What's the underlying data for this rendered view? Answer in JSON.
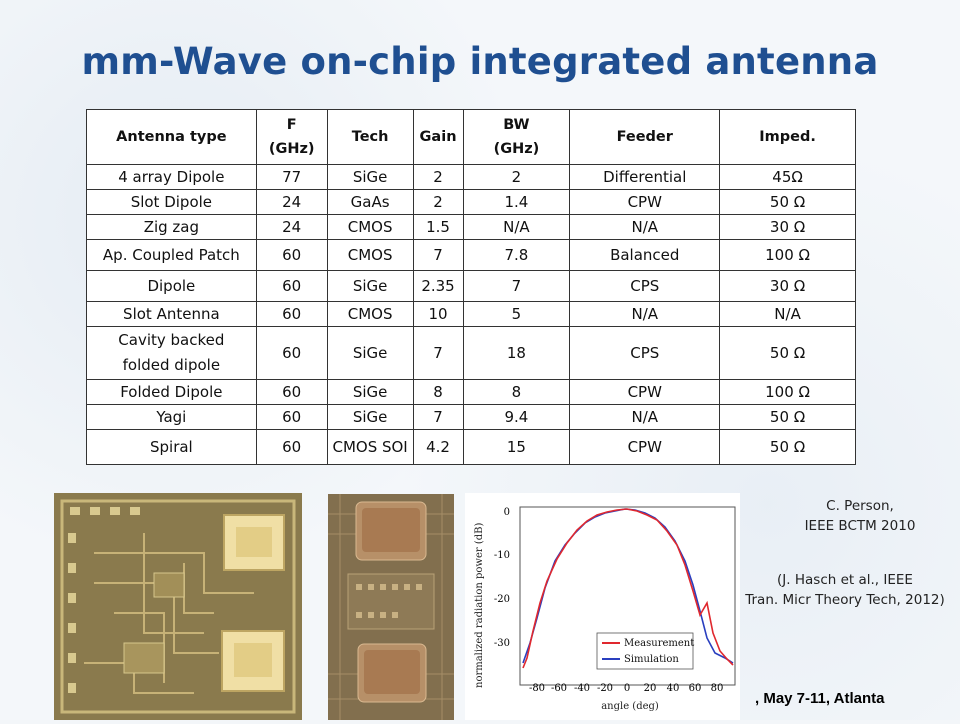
{
  "title": "mm-Wave on-chip integrated antenna",
  "table": {
    "headers": [
      "Antenna type",
      "F",
      "(GHz)",
      "Tech",
      "Gain",
      "BW",
      "(GHz)",
      "Feeder",
      "Imped."
    ],
    "rows": [
      [
        "4 array Dipole",
        "77",
        "SiGe",
        "2",
        "2",
        "Differential",
        "45Ω"
      ],
      [
        "Slot Dipole",
        "24",
        "GaAs",
        "2",
        "1.4",
        "CPW",
        "50 Ω"
      ],
      [
        "Zig zag",
        "24",
        "CMOS",
        "1.5",
        "N/A",
        "N/A",
        "30 Ω"
      ],
      [
        "Ap. Coupled Patch",
        "60",
        "CMOS",
        "7",
        "7.8",
        "Balanced",
        "100 Ω"
      ],
      [
        "Dipole",
        "60",
        "SiGe",
        "2.35",
        "7",
        "CPS",
        "30 Ω"
      ],
      [
        "Slot Antenna",
        "60",
        "CMOS",
        "10",
        "5",
        "N/A",
        "N/A"
      ],
      [
        "Cavity backed",
        "folded dipole",
        "60",
        "SiGe",
        "7",
        "18",
        "CPS",
        "50 Ω"
      ],
      [
        "Folded Dipole",
        "60",
        "SiGe",
        "8",
        "8",
        "CPW",
        "100 Ω"
      ],
      [
        "Yagi",
        "60",
        "SiGe",
        "7",
        "9.4",
        "N/A",
        "50 Ω"
      ],
      [
        "Spiral",
        "60",
        "CMOS SOI",
        "4.2",
        "15",
        "CPW",
        "50 Ω"
      ]
    ]
  },
  "plot": {
    "ylabel": "normalized radiation power (dB)",
    "xlabel": "angle (deg)",
    "yticks": [
      "0",
      "-10",
      "-20",
      "-30"
    ],
    "xticks": [
      "-80",
      "-60",
      "-40",
      "-20",
      "0",
      "20",
      "40",
      "60",
      "80"
    ],
    "legend": [
      "Measurement",
      "Simulation"
    ],
    "colors": {
      "measurement": "#e0282e",
      "simulation": "#2a3fbf"
    }
  },
  "citations": {
    "c1_line1": "C. Person,",
    "c1_line2": "IEEE BCTM 2010",
    "c2_line1": "(J. Hasch et al., IEEE",
    "c2_line2": "Tran. Micr Theory Tech, 2012)"
  },
  "footer": ", May 7-11, Atlanta"
}
